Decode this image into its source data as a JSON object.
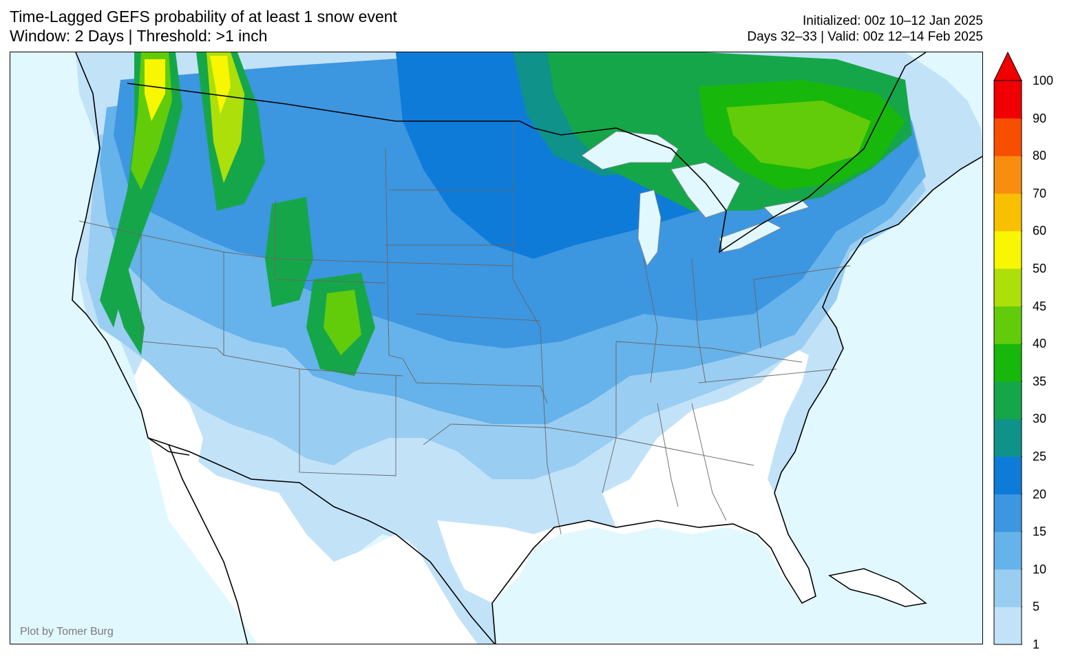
{
  "title": {
    "line1": "Time-Lagged GEFS probability of at least 1 snow event",
    "line2": "Window: 2 Days | Threshold: >1 inch"
  },
  "subtitle": {
    "initialized": "Initialized: 00z 10–12 Jan 2025",
    "valid": "Days 32–33 | Valid: 00z 12–14 Feb 2025"
  },
  "credit": "Plot by Tomer Burg",
  "colors": {
    "ocean": "#e2f8ff",
    "land_zero": "#ffffff",
    "coast": "#000000",
    "state_lines": "#666666"
  },
  "colorbar": {
    "levels": [
      "1",
      "5",
      "10",
      "15",
      "20",
      "25",
      "30",
      "35",
      "40",
      "45",
      "50",
      "60",
      "70",
      "80",
      "90",
      "100"
    ],
    "colors": [
      "#c2e2f8",
      "#9acdf2",
      "#66b2ea",
      "#3d96e0",
      "#0f7bd9",
      "#0f928a",
      "#16a64a",
      "#18b70c",
      "#62cc0a",
      "#addf0a",
      "#f8f600",
      "#f8c000",
      "#f88d10",
      "#f84e00",
      "#f00000"
    ],
    "extend_color": "#f00000"
  }
}
